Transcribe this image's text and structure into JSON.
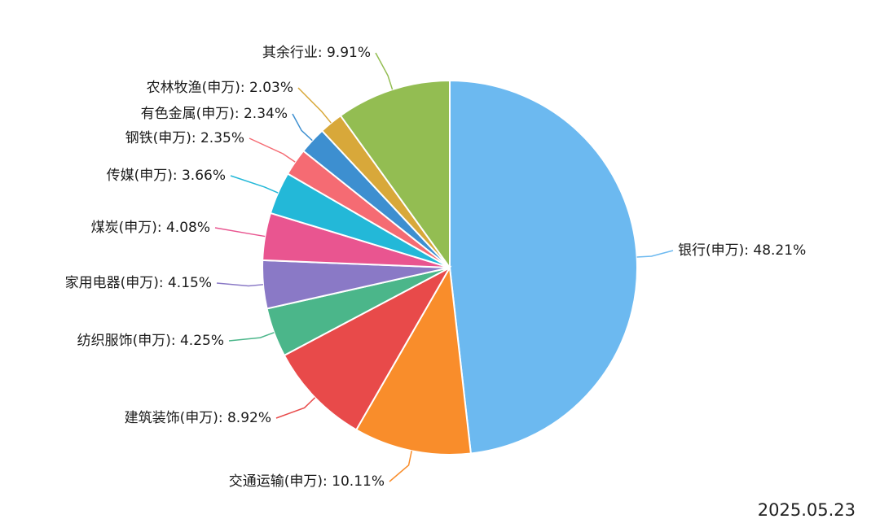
{
  "chart_data": {
    "type": "pie",
    "labels": [
      "银行(申万): 48.21%",
      "交通运输(申万): 10.11%",
      "建筑装饰(申万): 8.92%",
      "纺织服饰(申万): 4.25%",
      "家用电器(申万): 4.15%",
      "煤炭(申万): 4.08%",
      "传媒(申万): 3.66%",
      "钢铁(申万): 2.35%",
      "有色金属(申万): 2.34%",
      "农林牧渔(申万): 2.03%",
      "其余行业: 9.91%"
    ],
    "values": [
      48.21,
      10.11,
      8.92,
      4.25,
      4.15,
      4.08,
      3.66,
      2.35,
      2.34,
      2.03,
      9.91
    ],
    "colors": [
      "#6cb9f0",
      "#f98d2b",
      "#e84a4a",
      "#4bb68a",
      "#8a79c6",
      "#e95590",
      "#23b8d8",
      "#f56b73",
      "#3d8fd0",
      "#d8a83a",
      "#93bd52"
    ]
  },
  "date": "2025.05.23"
}
